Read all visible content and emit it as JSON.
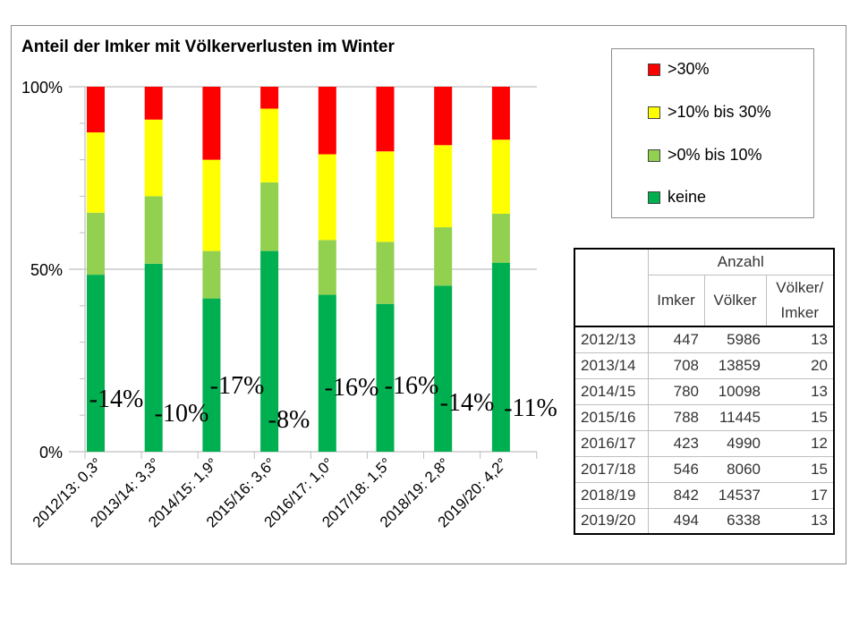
{
  "chart_data": {
    "type": "bar",
    "stacked": true,
    "title": "Anteil der Imker mit Völkerverlusten im Winter",
    "categories": [
      "2012/13: 0,3°",
      "2013/14: 3,3°",
      "2014/15: 1,9°",
      "2015/16: 3,6°",
      "2016/17: 1,0°",
      "2017/18: 1,5°",
      "2018/19: 2,8°",
      "2019/20: 4,2°"
    ],
    "series": [
      {
        "name": "keine",
        "color": "#00b050",
        "values": [
          48.5,
          51.5,
          42,
          55,
          43,
          40.5,
          45.5,
          51.8
        ]
      },
      {
        "name": ">0% bis 10%",
        "color": "#92d050",
        "values": [
          17,
          18.5,
          13,
          18.8,
          15,
          17,
          16,
          13.4
        ]
      },
      {
        "name": ">10% bis 30%",
        "color": "#ffff00",
        "values": [
          22,
          21,
          25,
          20.2,
          23.5,
          24.8,
          22.5,
          20.3
        ]
      },
      {
        "name": ">30%",
        "color": "#ff0000",
        "values": [
          12.5,
          9,
          20,
          6,
          18.5,
          17.7,
          16,
          14.5
        ]
      }
    ],
    "annotations": [
      "-14%",
      "-10%",
      "-17%",
      "-8%",
      "-16%",
      "-16%",
      "-14%",
      "-11%"
    ],
    "yticks": [
      "0%",
      "50%",
      "100%"
    ],
    "ylim": [
      0,
      100
    ],
    "legend_position": "top-right"
  },
  "legend": {
    "items": [
      {
        "label": ">30%",
        "color": "#ff0000"
      },
      {
        "label": ">10% bis 30%",
        "color": "#ffff00"
      },
      {
        "label": ">0% bis 10%",
        "color": "#92d050"
      },
      {
        "label": "keine",
        "color": "#00b050"
      }
    ]
  },
  "table": {
    "group_header": "Anzahl",
    "col_imker": "Imker",
    "col_voelker": "Völker",
    "col_ratio_1": "Völker/",
    "col_ratio_2": "Imker",
    "rows": [
      [
        "2012/13",
        "447",
        "5986",
        "13"
      ],
      [
        "2013/14",
        "708",
        "13859",
        "20"
      ],
      [
        "2014/15",
        "780",
        "10098",
        "13"
      ],
      [
        "2015/16",
        "788",
        "11445",
        "15"
      ],
      [
        "2016/17",
        "423",
        "4990",
        "12"
      ],
      [
        "2017/18",
        "546",
        "8060",
        "15"
      ],
      [
        "2018/19",
        "842",
        "14537",
        "17"
      ],
      [
        "2019/20",
        "494",
        "6338",
        "13"
      ]
    ]
  }
}
